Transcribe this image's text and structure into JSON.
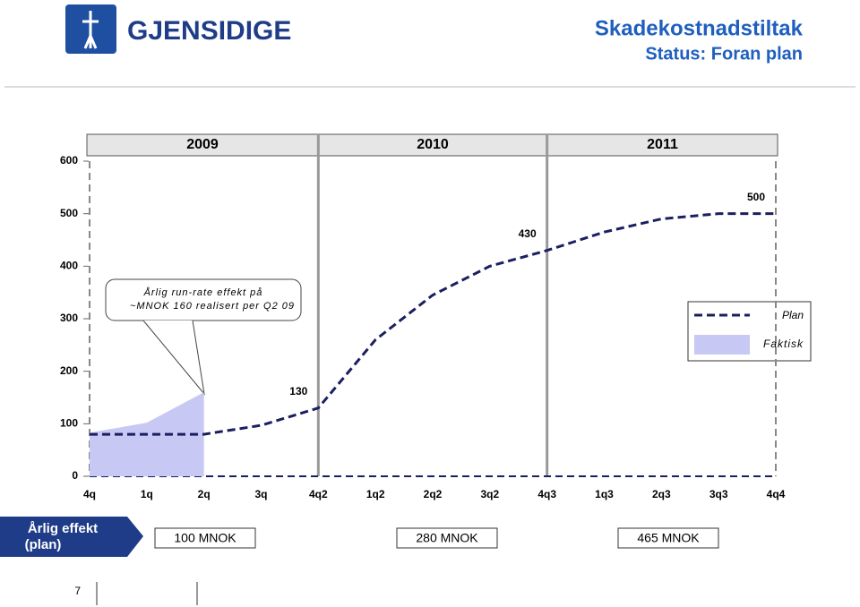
{
  "header": {
    "brand": "GJENSIDIGE",
    "title": "Skadekostnadstiltak",
    "subtitle": "Status: Foran plan"
  },
  "chart_data": {
    "type": "line",
    "years": [
      "2009",
      "2010",
      "2011"
    ],
    "categories": [
      "4q",
      "1q",
      "2q",
      "3q",
      "4q2",
      "1q2",
      "2q2",
      "3q2",
      "4q3",
      "1q3",
      "2q3",
      "3q3",
      "4q4"
    ],
    "ylim": [
      0,
      600
    ],
    "yticks": [
      0,
      100,
      200,
      300,
      400,
      500,
      600
    ],
    "series": [
      {
        "name": "Plan",
        "color": "#1a1f5e",
        "style": "line",
        "values": [
          80,
          80,
          80,
          97,
          130,
          260,
          345,
          400,
          430,
          465,
          490,
          500,
          500
        ],
        "value_labels": [
          null,
          null,
          null,
          null,
          "130",
          null,
          null,
          null,
          "430",
          null,
          null,
          null,
          "500"
        ]
      },
      {
        "name": "Faktisk",
        "color": "#c8c8f5",
        "style": "area",
        "values": [
          83,
          102,
          160,
          null,
          null,
          null,
          null,
          null,
          null,
          null,
          null,
          null,
          null
        ]
      }
    ],
    "annotation": [
      "Årlig run-rate effekt på",
      "~MNOK 160 realisert per Q2 09"
    ]
  },
  "footer_row": {
    "label": [
      "Årlig effekt",
      "(plan)"
    ],
    "boxes": [
      "100 MNOK",
      "280 MNOK",
      "465 MNOK"
    ]
  },
  "page_number": "7"
}
